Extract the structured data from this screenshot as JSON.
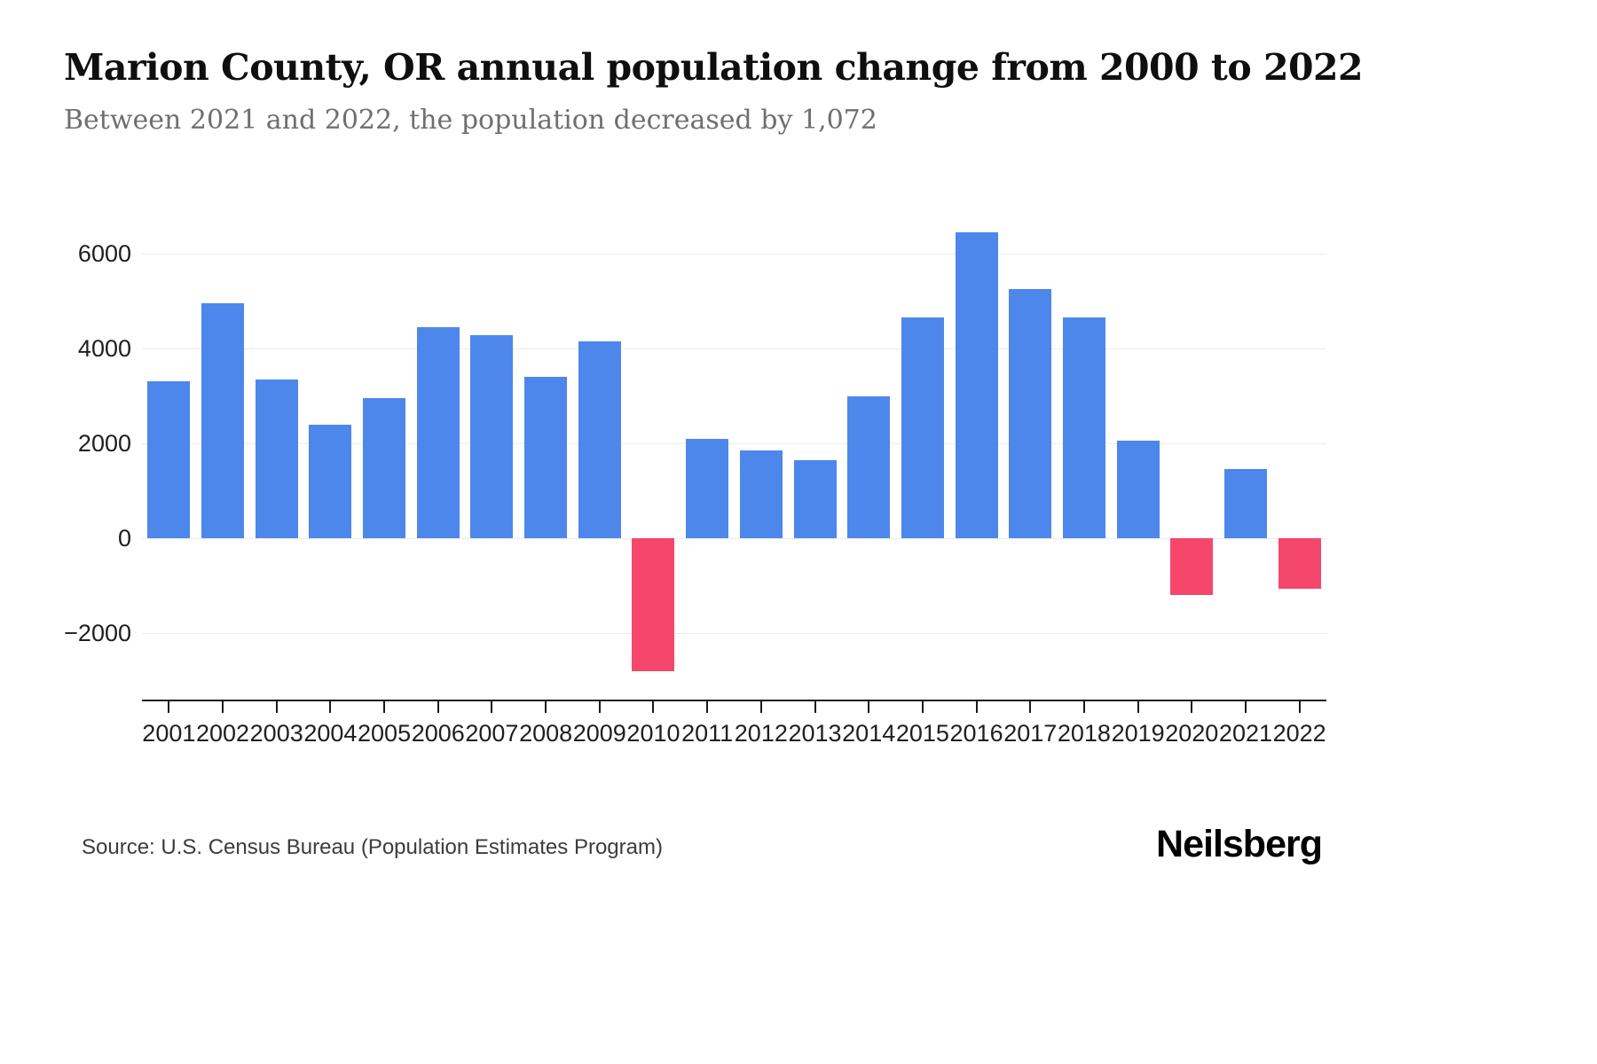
{
  "page": {
    "title": "Marion County, OR annual population change from 2000 to 2022",
    "subtitle": "Between 2021 and 2022, the population decreased by 1,072",
    "source": "Source: U.S. Census Bureau (Population Estimates Program)",
    "brand": "Neilsberg"
  },
  "chart_data": {
    "type": "bar",
    "title": "Marion County, OR annual population change from 2000 to 2022",
    "xlabel": "",
    "ylabel": "",
    "categories": [
      "2001",
      "2002",
      "2003",
      "2004",
      "2005",
      "2006",
      "2007",
      "2008",
      "2009",
      "2010",
      "2011",
      "2012",
      "2013",
      "2014",
      "2015",
      "2016",
      "2017",
      "2018",
      "2019",
      "2020",
      "2021",
      "2022"
    ],
    "values": [
      3300,
      4950,
      3350,
      2400,
      2950,
      4450,
      4280,
      3400,
      4150,
      -2800,
      2100,
      1850,
      1650,
      3000,
      4650,
      6450,
      5250,
      4650,
      2050,
      -1200,
      1450,
      -1072
    ],
    "ylim": [
      -3000,
      7000
    ],
    "yticks": [
      6000,
      4000,
      2000,
      0,
      -2000
    ],
    "ytick_labels": [
      "6000",
      "4000",
      "2000",
      "0",
      "−2000"
    ],
    "grid": true,
    "legend": false,
    "colors": {
      "positive": "#4d87ec",
      "negative": "#f5476b"
    }
  }
}
